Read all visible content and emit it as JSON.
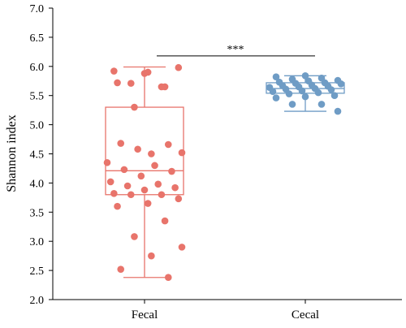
{
  "chart_data": {
    "type": "box",
    "xlabel": "",
    "ylabel": "Shannon index",
    "ylim": [
      2.0,
      7.0
    ],
    "yticks": [
      "2.0",
      "2.5",
      "3.0",
      "3.5",
      "4.0",
      "4.5",
      "5.0",
      "5.5",
      "6.0",
      "6.5",
      "7.0"
    ],
    "grid": false,
    "categories": [
      "Fecal",
      "Cecal"
    ],
    "series": [
      {
        "category": "Fecal",
        "color": "#E8746B",
        "box": {
          "min": 2.38,
          "q1": 3.8,
          "median": 4.21,
          "q3": 5.3,
          "max": 5.99
        },
        "points": [
          5.88,
          5.92,
          5.65,
          5.71,
          5.98,
          5.9,
          5.72,
          5.65,
          5.3,
          4.52,
          4.5,
          4.68,
          4.66,
          4.58,
          4.35,
          4.3,
          4.23,
          4.2,
          4.12,
          4.02,
          3.98,
          3.95,
          3.92,
          3.88,
          3.82,
          3.8,
          3.8,
          3.73,
          3.65,
          3.6,
          3.35,
          3.08,
          2.9,
          2.75,
          2.52,
          2.38
        ]
      },
      {
        "category": "Cecal",
        "color": "#6F9CC5",
        "box": {
          "min": 5.23,
          "q1": 5.54,
          "median": 5.62,
          "q3": 5.72,
          "max": 5.84
        },
        "points": [
          5.84,
          5.82,
          5.8,
          5.78,
          5.76,
          5.75,
          5.73,
          5.72,
          5.71,
          5.7,
          5.68,
          5.67,
          5.66,
          5.65,
          5.64,
          5.62,
          5.61,
          5.6,
          5.58,
          5.57,
          5.55,
          5.53,
          5.5,
          5.48,
          5.46,
          5.35,
          5.35,
          5.23
        ]
      }
    ],
    "annotations": [
      {
        "type": "significance",
        "text": "***",
        "between": [
          "Fecal",
          "Cecal"
        ],
        "y": 6.18
      }
    ]
  }
}
